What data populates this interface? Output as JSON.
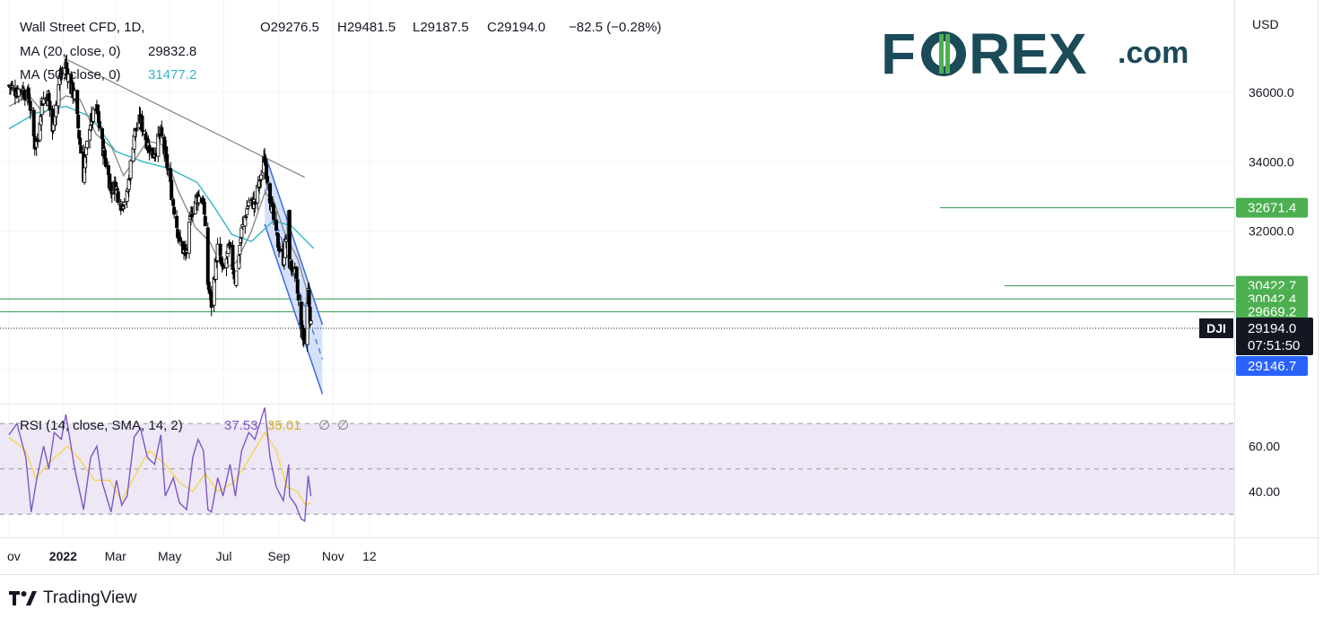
{
  "header": {
    "symbol_line": "Wall Street CFD, 1D,",
    "ohlc": {
      "o": "O29276.5",
      "h": "H29481.5",
      "l": "L29187.5",
      "c": "C29194.0",
      "chg": "−82.5 (−0.28%)"
    },
    "ma20": {
      "label": "MA (20, close, 0)",
      "value": "29832.8"
    },
    "ma50": {
      "label": "MA (50, close, 0)",
      "value": "31477.2"
    }
  },
  "brand": {
    "logo_left": "F",
    "logo_mid": "REX",
    "logo_suffix": ".com",
    "color": "#1b4a58",
    "accent": "#4caf50"
  },
  "footer": {
    "label": "TradingView"
  },
  "colors": {
    "candle": "#000000",
    "ma20": "#8c8c8c",
    "ma50": "#33b6c8",
    "trendline": "#808080",
    "channel_fill": "#c7d7fb",
    "channel_line": "#3b6ad9",
    "level_line": "#2e9a4b",
    "level_label_bg": "#4caf50",
    "rsi_line": "#7e57c2",
    "rsi_ma": "#f7d54a",
    "rsi_band": "#ede7f6",
    "price_label_black": "#131722",
    "price_label_blue": "#2962ff"
  },
  "chart_data": [
    {
      "type": "candlestick",
      "title": "Wall Street CFD, 1D",
      "unit": "USD",
      "y_ticks": [
        "36000.0",
        "34000.0",
        "32000.0"
      ],
      "ylim": [
        27000,
        37500
      ],
      "x_ticks": [
        "ov",
        "2022",
        "Mar",
        "May",
        "Jul",
        "Sep",
        "Nov",
        "12"
      ],
      "x_tick_dates": [
        "2021-11-01",
        "2022-01-01",
        "2022-03-01",
        "2022-05-01",
        "2022-07-01",
        "2022-09-01",
        "2022-11-01",
        "2022-12-12"
      ],
      "date_range": [
        "2021-11-01",
        "2022-10-07"
      ],
      "last_price": {
        "ticker": "DJI",
        "value": "29194.0",
        "countdown": "07:51:50"
      },
      "channel_price": "29146.7",
      "horizontal_levels": [
        {
          "value": 32671.4,
          "label": "32671.4"
        },
        {
          "value": 30422.7,
          "label": "30422.7"
        },
        {
          "value": 30042.4,
          "label": "30042.4"
        },
        {
          "value": 29669.2,
          "label": "29669.2"
        }
      ],
      "trendline": [
        {
          "date": "2022-01-05",
          "price": 36950
        },
        {
          "date": "2022-09-30",
          "price": 33550
        }
      ],
      "channel": {
        "upper": [
          {
            "date": "2022-08-16",
            "price": 34250
          },
          {
            "date": "2022-10-20",
            "price": 29300
          }
        ],
        "mid": [
          {
            "date": "2022-08-16",
            "price": 33200
          },
          {
            "date": "2022-10-20",
            "price": 28300
          }
        ],
        "lower": [
          {
            "date": "2022-08-16",
            "price": 32200
          },
          {
            "date": "2022-10-20",
            "price": 27300
          }
        ]
      },
      "close_path": [
        [
          "2021-11-01",
          36200
        ],
        [
          "2021-11-08",
          36050
        ],
        [
          "2021-11-16",
          36100
        ],
        [
          "2021-11-24",
          35800
        ],
        [
          "2021-11-30",
          34500
        ],
        [
          "2021-12-03",
          34600
        ],
        [
          "2021-12-08",
          35750
        ],
        [
          "2021-12-15",
          35900
        ],
        [
          "2021-12-20",
          34900
        ],
        [
          "2021-12-28",
          36400
        ],
        [
          "2022-01-04",
          36800
        ],
        [
          "2022-01-10",
          36100
        ],
        [
          "2022-01-14",
          35900
        ],
        [
          "2022-01-24",
          33600
        ],
        [
          "2022-01-31",
          35100
        ],
        [
          "2022-02-08",
          35500
        ],
        [
          "2022-02-14",
          34500
        ],
        [
          "2022-02-24",
          33200
        ],
        [
          "2022-03-01",
          33300
        ],
        [
          "2022-03-07",
          32800
        ],
        [
          "2022-03-14",
          33000
        ],
        [
          "2022-03-22",
          34800
        ],
        [
          "2022-03-29",
          35200
        ],
        [
          "2022-04-05",
          34600
        ],
        [
          "2022-04-12",
          34200
        ],
        [
          "2022-04-21",
          34800
        ],
        [
          "2022-04-28",
          33900
        ],
        [
          "2022-05-05",
          32800
        ],
        [
          "2022-05-12",
          31700
        ],
        [
          "2022-05-19",
          31300
        ],
        [
          "2022-05-26",
          32600
        ],
        [
          "2022-06-01",
          33000
        ],
        [
          "2022-06-08",
          32900
        ],
        [
          "2022-06-13",
          30500
        ],
        [
          "2022-06-17",
          29900
        ],
        [
          "2022-06-24",
          31500
        ],
        [
          "2022-06-30",
          30800
        ],
        [
          "2022-07-07",
          31500
        ],
        [
          "2022-07-14",
          30600
        ],
        [
          "2022-07-21",
          32000
        ],
        [
          "2022-07-29",
          32850
        ],
        [
          "2022-08-05",
          32800
        ],
        [
          "2022-08-16",
          34100
        ],
        [
          "2022-08-22",
          33000
        ],
        [
          "2022-08-29",
          31800
        ],
        [
          "2022-09-06",
          31200
        ],
        [
          "2022-09-12",
          32400
        ],
        [
          "2022-09-13",
          31100
        ],
        [
          "2022-09-20",
          30700
        ],
        [
          "2022-09-26",
          29200
        ],
        [
          "2022-09-30",
          28800
        ],
        [
          "2022-10-04",
          30300
        ],
        [
          "2022-10-07",
          29200
        ]
      ],
      "ma20_path": [
        [
          "2021-11-01",
          35600
        ],
        [
          "2021-11-24",
          35900
        ],
        [
          "2021-12-10",
          35400
        ],
        [
          "2022-01-04",
          35900
        ],
        [
          "2022-01-20",
          35800
        ],
        [
          "2022-02-07",
          34800
        ],
        [
          "2022-02-25",
          34400
        ],
        [
          "2022-03-10",
          33600
        ],
        [
          "2022-03-24",
          34100
        ],
        [
          "2022-04-06",
          34600
        ],
        [
          "2022-04-22",
          34500
        ],
        [
          "2022-05-10",
          33200
        ],
        [
          "2022-05-30",
          32100
        ],
        [
          "2022-06-15",
          31700
        ],
        [
          "2022-06-30",
          30900
        ],
        [
          "2022-07-15",
          31100
        ],
        [
          "2022-08-01",
          32000
        ],
        [
          "2022-08-16",
          33100
        ],
        [
          "2022-08-26",
          32900
        ],
        [
          "2022-09-08",
          31900
        ],
        [
          "2022-09-22",
          31200
        ],
        [
          "2022-10-07",
          29900
        ]
      ],
      "ma50_path": [
        [
          "2021-11-01",
          34950
        ],
        [
          "2021-12-01",
          35400
        ],
        [
          "2022-01-04",
          35600
        ],
        [
          "2022-02-01",
          35300
        ],
        [
          "2022-03-01",
          34300
        ],
        [
          "2022-04-01",
          34000
        ],
        [
          "2022-05-01",
          33800
        ],
        [
          "2022-06-01",
          33400
        ],
        [
          "2022-06-20",
          32700
        ],
        [
          "2022-07-10",
          31900
        ],
        [
          "2022-08-01",
          31700
        ],
        [
          "2022-08-26",
          32300
        ],
        [
          "2022-09-15",
          32150
        ],
        [
          "2022-10-10",
          31500
        ]
      ]
    },
    {
      "type": "line",
      "title": "RSI (14, close, SMA, 14, 2)",
      "values": {
        "rsi": "37.53",
        "rsi_ma": "35.01",
        "extra1": "∅",
        "extra2": "∅"
      },
      "y_ticks": [
        "60.00",
        "40.00"
      ],
      "ylim": [
        20,
        82
      ],
      "band": [
        30,
        70
      ],
      "rsi_path": [
        [
          "2021-11-01",
          65
        ],
        [
          "2021-11-10",
          70
        ],
        [
          "2021-11-20",
          55
        ],
        [
          "2021-11-26",
          31
        ],
        [
          "2021-12-02",
          45
        ],
        [
          "2021-12-10",
          60
        ],
        [
          "2021-12-16",
          50
        ],
        [
          "2021-12-22",
          66
        ],
        [
          "2021-12-30",
          63
        ],
        [
          "2022-01-04",
          74
        ],
        [
          "2022-01-14",
          50
        ],
        [
          "2022-01-24",
          32
        ],
        [
          "2022-02-01",
          55
        ],
        [
          "2022-02-08",
          60
        ],
        [
          "2022-02-14",
          44
        ],
        [
          "2022-02-24",
          31
        ],
        [
          "2022-03-02",
          45
        ],
        [
          "2022-03-08",
          34
        ],
        [
          "2022-03-14",
          38
        ],
        [
          "2022-03-22",
          64
        ],
        [
          "2022-03-29",
          68
        ],
        [
          "2022-04-06",
          55
        ],
        [
          "2022-04-14",
          52
        ],
        [
          "2022-04-21",
          65
        ],
        [
          "2022-04-26",
          38
        ],
        [
          "2022-05-05",
          46
        ],
        [
          "2022-05-12",
          35
        ],
        [
          "2022-05-20",
          32
        ],
        [
          "2022-05-27",
          55
        ],
        [
          "2022-06-02",
          63
        ],
        [
          "2022-06-08",
          58
        ],
        [
          "2022-06-13",
          32
        ],
        [
          "2022-06-17",
          31
        ],
        [
          "2022-06-24",
          46
        ],
        [
          "2022-06-30",
          38
        ],
        [
          "2022-07-08",
          52
        ],
        [
          "2022-07-14",
          38
        ],
        [
          "2022-07-21",
          58
        ],
        [
          "2022-07-29",
          66
        ],
        [
          "2022-08-05",
          63
        ],
        [
          "2022-08-16",
          77
        ],
        [
          "2022-08-22",
          55
        ],
        [
          "2022-08-29",
          42
        ],
        [
          "2022-09-06",
          36
        ],
        [
          "2022-09-12",
          52
        ],
        [
          "2022-09-13",
          38
        ],
        [
          "2022-09-20",
          34
        ],
        [
          "2022-09-26",
          28
        ],
        [
          "2022-09-30",
          27
        ],
        [
          "2022-10-04",
          47
        ],
        [
          "2022-10-07",
          38
        ]
      ],
      "rsi_ma_path": [
        [
          "2021-11-01",
          64
        ],
        [
          "2021-11-20",
          58
        ],
        [
          "2021-12-01",
          46
        ],
        [
          "2021-12-20",
          54
        ],
        [
          "2022-01-06",
          60
        ],
        [
          "2022-01-20",
          54
        ],
        [
          "2022-02-05",
          45
        ],
        [
          "2022-02-22",
          45
        ],
        [
          "2022-03-08",
          36
        ],
        [
          "2022-03-24",
          48
        ],
        [
          "2022-04-08",
          58
        ],
        [
          "2022-04-26",
          52
        ],
        [
          "2022-05-12",
          44
        ],
        [
          "2022-05-27",
          40
        ],
        [
          "2022-06-10",
          48
        ],
        [
          "2022-06-24",
          40
        ],
        [
          "2022-07-12",
          44
        ],
        [
          "2022-07-29",
          54
        ],
        [
          "2022-08-16",
          66
        ],
        [
          "2022-08-29",
          58
        ],
        [
          "2022-09-10",
          42
        ],
        [
          "2022-09-22",
          40
        ],
        [
          "2022-10-01",
          34
        ],
        [
          "2022-10-07",
          35
        ]
      ]
    }
  ]
}
